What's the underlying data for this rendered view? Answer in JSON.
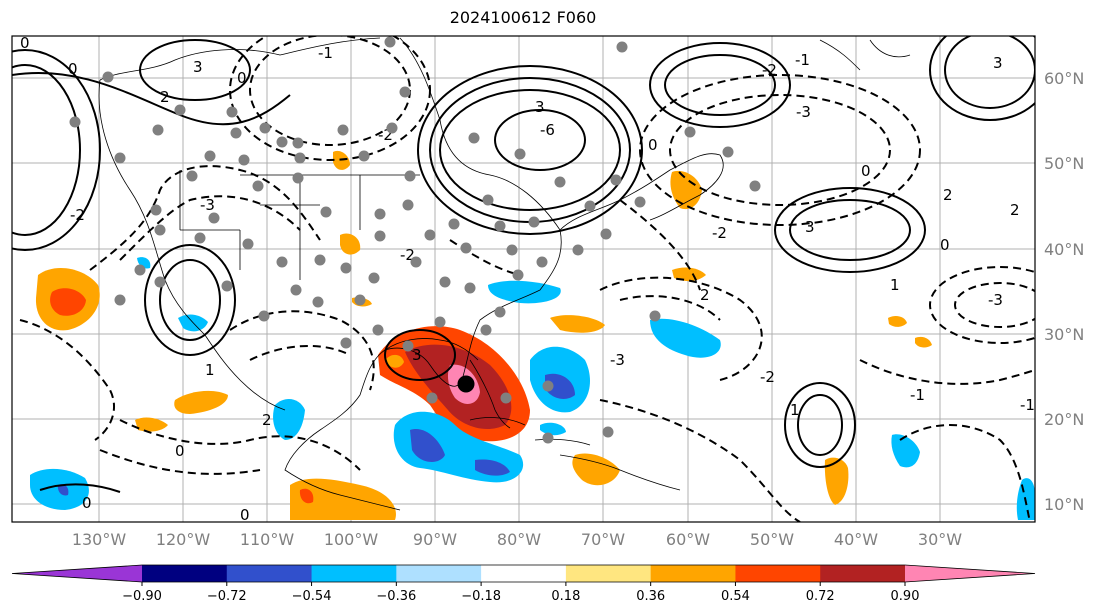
{
  "title": "2024100612 F060",
  "lon_labels": [
    "130°W",
    "120°W",
    "110°W",
    "100°W",
    "90°W",
    "80°W",
    "70°W",
    "60°W",
    "50°W",
    "40°W",
    "30°W"
  ],
  "lat_labels": [
    "60°N",
    "50°N",
    "40°N",
    "30°N",
    "20°N",
    "10°N"
  ],
  "colorbar": {
    "ticks": [
      "−0.90",
      "−0.72",
      "−0.54",
      "−0.36",
      "−0.18",
      "0.18",
      "0.36",
      "0.54",
      "0.72",
      "0.90"
    ],
    "colors": [
      "#9a35d6",
      "#000080",
      "#3150cc",
      "#00bfff",
      "#aee0ff",
      "#ffffff",
      "#ffe680",
      "#ffa500",
      "#ff4500",
      "#b22222",
      "#ff85b3"
    ]
  },
  "contour_labels": [
    "0",
    "3",
    "0",
    "2",
    "0",
    "-1",
    "-2",
    "3",
    "0",
    "-3",
    "-2",
    "-1",
    "2",
    "-3",
    "-6",
    "-2",
    "0",
    "-2",
    "1",
    "2",
    "3",
    "3",
    "0",
    "-1",
    "1",
    "-3",
    "2",
    "-2",
    "-2",
    "3",
    "-3",
    "0",
    "0",
    "1",
    "2",
    "0",
    "-1"
  ],
  "storm_marker": "black-dot"
}
